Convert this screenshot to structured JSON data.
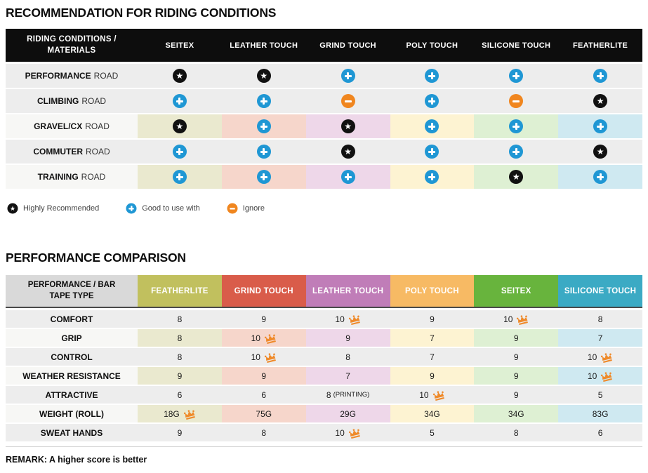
{
  "recommendation_table": {
    "title": "RECOMMENDATION FOR RIDING CONDITIONS",
    "corner_header": "RIDING CONDITIONS / MATERIALS",
    "columns": [
      "SEITEX",
      "LEATHER TOUCH",
      "GRIND TOUCH",
      "POLY TOUCH",
      "SILICONE TOUCH",
      "FEATHERLITE"
    ],
    "rows": [
      {
        "label_bold": "PERFORMANCE",
        "label_rest": "ROAD",
        "tinted": false,
        "cells": [
          "star",
          "star",
          "plus",
          "plus",
          "plus",
          "plus"
        ]
      },
      {
        "label_bold": "CLIMBING",
        "label_rest": "ROAD",
        "tinted": false,
        "cells": [
          "plus",
          "plus",
          "ignore",
          "plus",
          "ignore",
          "star"
        ]
      },
      {
        "label_bold": "GRAVEL/CX",
        "label_rest": "ROAD",
        "tinted": true,
        "cells": [
          "star",
          "plus",
          "star",
          "plus",
          "plus",
          "plus"
        ]
      },
      {
        "label_bold": "COMMUTER",
        "label_rest": "ROAD",
        "tinted": false,
        "cells": [
          "plus",
          "plus",
          "star",
          "plus",
          "plus",
          "star"
        ]
      },
      {
        "label_bold": "TRAINING",
        "label_rest": "ROAD",
        "tinted": true,
        "cells": [
          "plus",
          "plus",
          "plus",
          "plus",
          "star",
          "plus"
        ]
      }
    ],
    "legend": [
      {
        "icon": "star",
        "label": "Highly Recommended"
      },
      {
        "icon": "plus",
        "label": "Good to use with"
      },
      {
        "icon": "ignore",
        "label": "Ignore"
      }
    ]
  },
  "performance_table": {
    "title": "PERFORMANCE COMPARISON",
    "corner_header": "PERFORMANCE / BAR TAPE TYPE",
    "columns": [
      {
        "name": "FEATHERLITE",
        "color": "#c1c05e"
      },
      {
        "name": "GRIND TOUCH",
        "color": "#d95c4a"
      },
      {
        "name": "LEATHER TOUCH",
        "color": "#c07db8"
      },
      {
        "name": "POLY TOUCH",
        "color": "#f7ba64"
      },
      {
        "name": "SEITEX",
        "color": "#68b43d"
      },
      {
        "name": "SILICONE TOUCH",
        "color": "#3baac4"
      }
    ],
    "rows": [
      {
        "label": "COMFORT",
        "tinted": false,
        "cells": [
          {
            "v": "8"
          },
          {
            "v": "9"
          },
          {
            "v": "10",
            "crown": true
          },
          {
            "v": "9"
          },
          {
            "v": "10",
            "crown": true
          },
          {
            "v": "8"
          }
        ]
      },
      {
        "label": "GRIP",
        "tinted": true,
        "cells": [
          {
            "v": "8"
          },
          {
            "v": "10",
            "crown": true
          },
          {
            "v": "9"
          },
          {
            "v": "7"
          },
          {
            "v": "9"
          },
          {
            "v": "7"
          }
        ]
      },
      {
        "label": "CONTROL",
        "tinted": false,
        "cells": [
          {
            "v": "8"
          },
          {
            "v": "10",
            "crown": true
          },
          {
            "v": "8"
          },
          {
            "v": "7"
          },
          {
            "v": "9"
          },
          {
            "v": "10",
            "crown": true
          }
        ]
      },
      {
        "label": "WEATHER RESISTANCE",
        "tinted": true,
        "cells": [
          {
            "v": "9"
          },
          {
            "v": "9"
          },
          {
            "v": "7"
          },
          {
            "v": "9"
          },
          {
            "v": "9"
          },
          {
            "v": "10",
            "crown": true
          }
        ]
      },
      {
        "label": "ATTRACTIVE",
        "tinted": false,
        "cells": [
          {
            "v": "6"
          },
          {
            "v": "6"
          },
          {
            "v": "8",
            "suffix": "(PRINTING)"
          },
          {
            "v": "10",
            "crown": true
          },
          {
            "v": "9"
          },
          {
            "v": "5"
          }
        ]
      },
      {
        "label": "WEIGHT (ROLL)",
        "tinted": true,
        "cells": [
          {
            "v": "18G",
            "crown": true
          },
          {
            "v": "75G"
          },
          {
            "v": "29G"
          },
          {
            "v": "34G"
          },
          {
            "v": "34G"
          },
          {
            "v": "83G"
          }
        ]
      },
      {
        "label": "SWEAT HANDS",
        "tinted": false,
        "cells": [
          {
            "v": "9"
          },
          {
            "v": "8"
          },
          {
            "v": "10",
            "crown": true
          },
          {
            "v": "5"
          },
          {
            "v": "8"
          },
          {
            "v": "6"
          }
        ]
      }
    ],
    "remark": "REMARK: A higher score is better"
  },
  "colors": {
    "header_black": "#0d0d0d",
    "corner_gray": "#d9d9d9",
    "row_gray": "#ededed",
    "row_label_light": "#f7f7f5",
    "icon_star_bg": "#111111",
    "icon_plus_bg": "#1f97d4",
    "icon_ignore_bg": "#f0861f",
    "crown": "#ef8a2a",
    "position_tints": [
      "#eae9cf",
      "#f6d6cb",
      "#eed7e9",
      "#fdf3d2",
      "#def0d3",
      "#cfe9f1"
    ]
  },
  "chart_data": [
    {
      "type": "table",
      "title": "RECOMMENDATION FOR RIDING CONDITIONS",
      "columns": [
        "SEITEX",
        "LEATHER TOUCH",
        "GRIND TOUCH",
        "POLY TOUCH",
        "SILICONE TOUCH",
        "FEATHERLITE"
      ],
      "rows": [
        {
          "label": "PERFORMANCE ROAD",
          "values": [
            "highly_recommended",
            "highly_recommended",
            "good_to_use_with",
            "good_to_use_with",
            "good_to_use_with",
            "good_to_use_with"
          ]
        },
        {
          "label": "CLIMBING ROAD",
          "values": [
            "good_to_use_with",
            "good_to_use_with",
            "ignore",
            "good_to_use_with",
            "ignore",
            "highly_recommended"
          ]
        },
        {
          "label": "GRAVEL/CX ROAD",
          "values": [
            "highly_recommended",
            "good_to_use_with",
            "highly_recommended",
            "good_to_use_with",
            "good_to_use_with",
            "good_to_use_with"
          ]
        },
        {
          "label": "COMMUTER ROAD",
          "values": [
            "good_to_use_with",
            "good_to_use_with",
            "highly_recommended",
            "good_to_use_with",
            "good_to_use_with",
            "highly_recommended"
          ]
        },
        {
          "label": "TRAINING ROAD",
          "values": [
            "good_to_use_with",
            "good_to_use_with",
            "good_to_use_with",
            "good_to_use_with",
            "highly_recommended",
            "good_to_use_with"
          ]
        }
      ],
      "legend": [
        "Highly Recommended",
        "Good to use with",
        "Ignore"
      ]
    },
    {
      "type": "table",
      "title": "PERFORMANCE COMPARISON",
      "columns": [
        "FEATHERLITE",
        "GRIND TOUCH",
        "LEATHER TOUCH",
        "POLY TOUCH",
        "SEITEX",
        "SILICONE TOUCH"
      ],
      "rows": [
        {
          "label": "COMFORT",
          "values": [
            "8",
            "9",
            "10 (best)",
            "9",
            "10 (best)",
            "8"
          ]
        },
        {
          "label": "GRIP",
          "values": [
            "8",
            "10 (best)",
            "9",
            "7",
            "9",
            "7"
          ]
        },
        {
          "label": "CONTROL",
          "values": [
            "8",
            "10 (best)",
            "8",
            "7",
            "9",
            "10 (best)"
          ]
        },
        {
          "label": "WEATHER RESISTANCE",
          "values": [
            "9",
            "9",
            "7",
            "9",
            "9",
            "10 (best)"
          ]
        },
        {
          "label": "ATTRACTIVE",
          "values": [
            "6",
            "6",
            "8 (PRINTING)",
            "10 (best)",
            "9",
            "5"
          ]
        },
        {
          "label": "WEIGHT (ROLL)",
          "values": [
            "18G (best)",
            "75G",
            "29G",
            "34G",
            "34G",
            "83G"
          ]
        },
        {
          "label": "SWEAT HANDS",
          "values": [
            "9",
            "8",
            "10 (best)",
            "5",
            "8",
            "6"
          ]
        }
      ],
      "annotation": "REMARK: A higher score is better"
    }
  ]
}
